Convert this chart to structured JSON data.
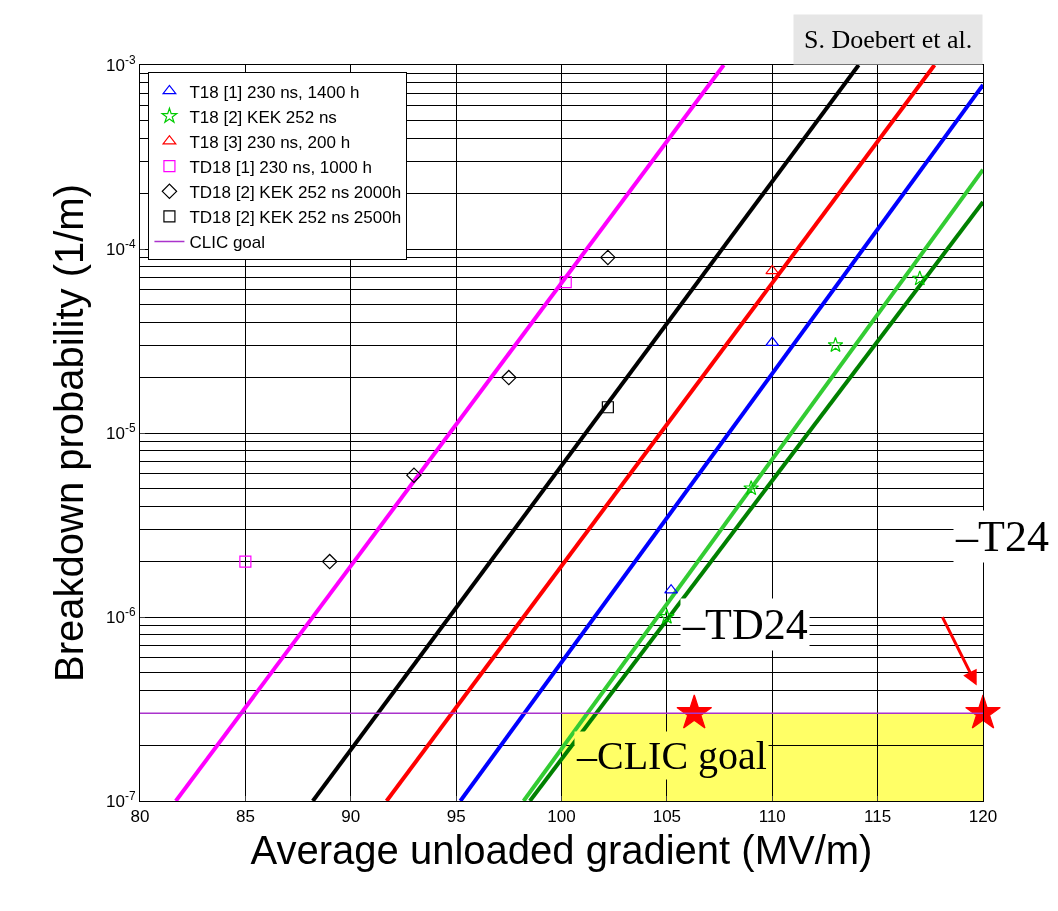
{
  "chart_data": {
    "type": "line",
    "xlabel": "Average unloaded gradient (MV/m)",
    "ylabel": "Breakdown probability (1/m)",
    "log": "y",
    "grid": true,
    "legend": "top left",
    "xlim": [
      80,
      120
    ],
    "ylim": [
      1e-07,
      0.001
    ],
    "xticks": [
      80,
      85,
      90,
      95,
      100,
      105,
      110,
      115,
      120
    ],
    "yticks": [
      {
        "value": 1e-07,
        "label": "10$^{-7}$"
      },
      {
        "value": 1e-06,
        "label": "10$^{-6}$"
      },
      {
        "value": 1e-05,
        "label": "10$^{-5}$"
      },
      {
        "value": 0.0001,
        "label": "10$^{-4}$"
      },
      {
        "value": 0.001,
        "label": "10$^{-3}$"
      }
    ],
    "series": [
      {
        "type": "scatter",
        "name": "T18 [1] 230 ns, 1400 h",
        "color": "#0000ff",
        "marker": "triangle",
        "x": [
          110,
          105.2
        ],
        "values": [
          3.1e-05,
          1.4e-06
        ]
      },
      {
        "type": "scatter",
        "name": "T18 [2] KEK 252 ns",
        "color": "#00cc00",
        "marker": "star",
        "x": [
          117,
          113,
          109,
          105
        ],
        "values": [
          6.9e-05,
          3e-05,
          5e-06,
          1e-06
        ]
      },
      {
        "type": "scatter",
        "name": "T18 [3] 230 ns, 200 h",
        "color": "#ff0000",
        "marker": "triangle",
        "x": [
          110
        ],
        "values": [
          7.6e-05
        ]
      },
      {
        "type": "scatter",
        "name": "TD18 [1] 230 ns, 1000 h",
        "color": "#ff00ff",
        "marker": "square",
        "x": [
          100.2,
          85
        ],
        "values": [
          6.6e-05,
          2e-06
        ]
      },
      {
        "type": "scatter",
        "name": "TD18 [2] KEK 252 ns 2000h",
        "color": "#000000",
        "marker": "diamond",
        "x": [
          102.2,
          97.5,
          93,
          89
        ],
        "values": [
          9e-05,
          2e-05,
          5.9e-06,
          2e-06
        ]
      },
      {
        "type": "scatter",
        "name": "TD18 [2] KEK 252 ns 2500h",
        "color": "#000000",
        "marker": "square",
        "x": [
          102.2
        ],
        "values": [
          1.38e-05
        ]
      },
      {
        "color": "#ff00ff",
        "x": [
          81.7,
          107.7
        ],
        "values": [
          1e-07,
          0.001
        ]
      },
      {
        "color": "#000000",
        "x": [
          88.2,
          114.1
        ],
        "values": [
          1e-07,
          0.001
        ]
      },
      {
        "color": "#ff0000",
        "x": [
          91.7,
          117.7
        ],
        "values": [
          1e-07,
          0.001
        ]
      },
      {
        "color": "#0000ff",
        "x": [
          95.2,
          120
        ],
        "values": [
          1e-07,
          0.00078
        ]
      },
      {
        "color": "#33cc33",
        "x": [
          98.2,
          120
        ],
        "values": [
          1e-07,
          0.00027
        ]
      },
      {
        "color": "#008000",
        "x": [
          98.5,
          120
        ],
        "values": [
          1e-07,
          0.00018
        ]
      },
      {
        "type": "scatter",
        "color": "#ff0000",
        "marker": "star",
        "x": [
          106.3,
          120
        ],
        "values": [
          3e-07,
          3e-07
        ]
      }
    ],
    "ref_lines": [
      {
        "axis": "y",
        "value": 3e-07,
        "label": "CLIC goal",
        "color": "#aa33cc"
      }
    ],
    "bands": [
      {
        "axis": "x",
        "from": 100,
        "to": 120,
        "color": "#ffff66",
        "label": "–CLIC goal"
      }
    ],
    "annotations": [
      "–TD24",
      "–T24",
      "S. Doebert et al."
    ]
  }
}
